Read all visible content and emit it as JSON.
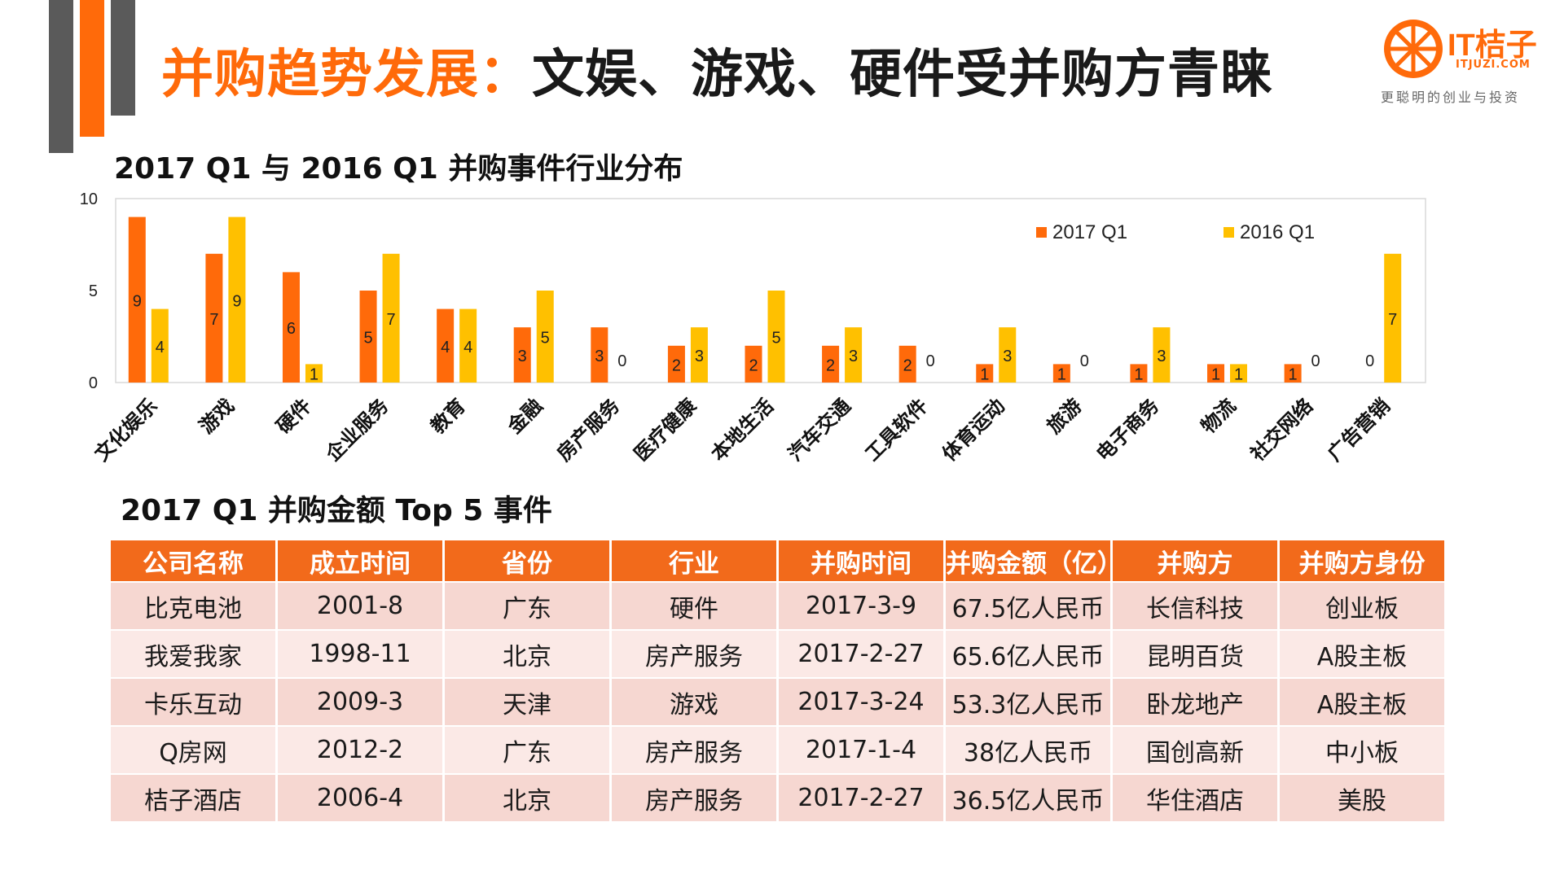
{
  "header": {
    "title_highlight": "并购趋势发展：",
    "title_rest": "文娱、游戏、硬件受并购方青睐"
  },
  "logo": {
    "brand": "IT桔子",
    "domain": "ITJUZI.COM",
    "slogan": "更聪明的创业与投资"
  },
  "section1": {
    "title": "2017 Q1 与 2016 Q1 并购事件行业分布"
  },
  "section2": {
    "title": "2017 Q1 并购金额 Top 5 事件"
  },
  "colors": {
    "accent": "#ff6a0a",
    "series_2017": "#ff6a0a",
    "series_2016": "#ffc000",
    "dark_bar": "#5a5a5a",
    "header_bg": "#f26a1b"
  },
  "chart_data": {
    "type": "bar",
    "title": "2017 Q1 与 2016 Q1 并购事件行业分布",
    "categories": [
      "文化娱乐",
      "游戏",
      "硬件",
      "企业服务",
      "教育",
      "金融",
      "房产服务",
      "医疗健康",
      "本地生活",
      "汽车交通",
      "工具软件",
      "体育运动",
      "旅游",
      "电子商务",
      "物流",
      "社交网络",
      "广告营销"
    ],
    "series": [
      {
        "name": "2017 Q1",
        "values": [
          9,
          7,
          6,
          5,
          4,
          3,
          3,
          2,
          2,
          2,
          2,
          1,
          1,
          1,
          1,
          1,
          0
        ]
      },
      {
        "name": "2016 Q1",
        "values": [
          4,
          9,
          1,
          7,
          4,
          5,
          0,
          3,
          5,
          3,
          0,
          3,
          0,
          3,
          1,
          0,
          7
        ]
      }
    ],
    "ylim": [
      0,
      10
    ],
    "yticks": [
      0,
      5,
      10
    ],
    "xlabel": "",
    "ylabel": "",
    "legend_position": "top-right",
    "grid": false
  },
  "table": {
    "headers": [
      "公司名称",
      "成立时间",
      "省份",
      "行业",
      "并购时间",
      "并购金额（亿）",
      "并购方",
      "并购方身份"
    ],
    "rows": [
      [
        "比克电池",
        "2001-8",
        "广东",
        "硬件",
        "2017-3-9",
        "67.5亿人民币",
        "长信科技",
        "创业板"
      ],
      [
        "我爱我家",
        "1998-11",
        "北京",
        "房产服务",
        "2017-2-27",
        "65.6亿人民币",
        "昆明百货",
        "A股主板"
      ],
      [
        "卡乐互动",
        "2009-3",
        "天津",
        "游戏",
        "2017-3-24",
        "53.3亿人民币",
        "卧龙地产",
        "A股主板"
      ],
      [
        "Q房网",
        "2012-2",
        "广东",
        "房产服务",
        "2017-1-4",
        "38亿人民币",
        "国创高新",
        "中小板"
      ],
      [
        "桔子酒店",
        "2006-4",
        "北京",
        "房产服务",
        "2017-2-27",
        "36.5亿人民币",
        "华住酒店",
        "美股"
      ]
    ]
  }
}
